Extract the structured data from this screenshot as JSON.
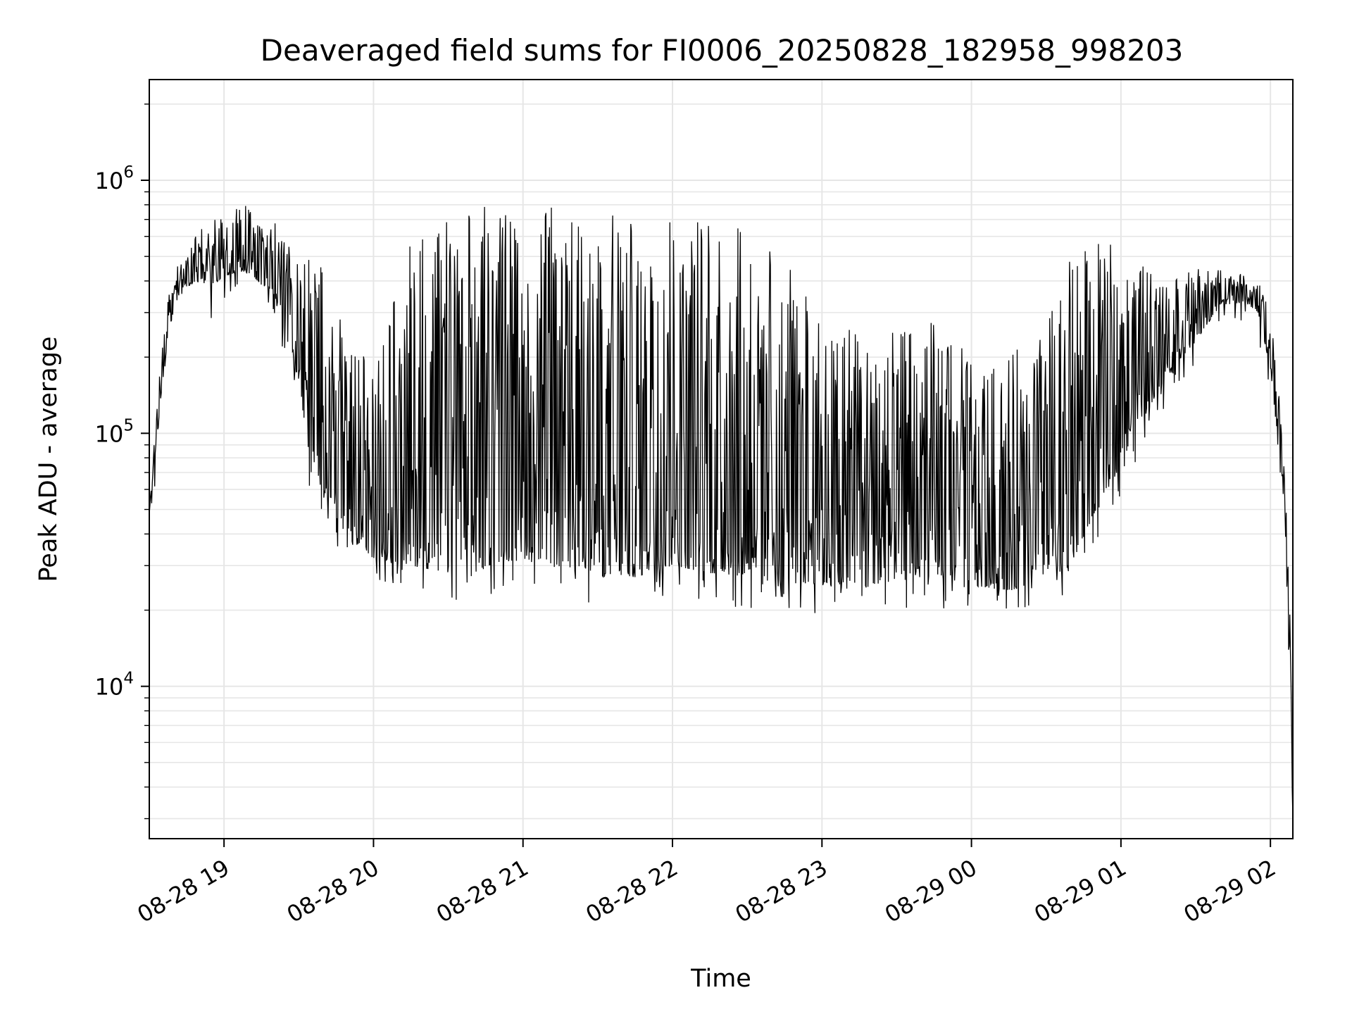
{
  "chart_data": {
    "type": "line",
    "title": "Deaveraged field sums for FI0006_20250828_182958_998203",
    "xlabel": "Time",
    "ylabel": "Peak ADU - average",
    "yscale": "log",
    "ylim": [
      2500,
      2500000
    ],
    "xlim": [
      "08-28 18:30",
      "08-29 02:09"
    ],
    "grid": true,
    "x_ticks": [
      {
        "label": "08-28 19",
        "time": "08-28 19:00"
      },
      {
        "label": "08-28 20",
        "time": "08-28 20:00"
      },
      {
        "label": "08-28 21",
        "time": "08-28 21:00"
      },
      {
        "label": "08-28 22",
        "time": "08-28 22:00"
      },
      {
        "label": "08-28 23",
        "time": "08-28 23:00"
      },
      {
        "label": "08-29 00",
        "time": "08-29 00:00"
      },
      {
        "label": "08-29 01",
        "time": "08-29 01:00"
      },
      {
        "label": "08-29 02",
        "time": "08-29 02:00"
      }
    ],
    "y_ticks": [
      {
        "base": "10",
        "exp": "4",
        "value": 10000
      },
      {
        "base": "10",
        "exp": "5",
        "value": 100000
      },
      {
        "base": "10",
        "exp": "6",
        "value": 1000000
      }
    ],
    "series": [
      {
        "color": "#000000",
        "note_envelope": "approximate baseline / upper envelope of a dense noisy trace",
        "x": [
          "08-28 18:30",
          "08-28 18:35",
          "08-28 18:40",
          "08-28 18:45",
          "08-28 18:50",
          "08-28 18:55",
          "08-28 19:00",
          "08-28 19:10",
          "08-28 19:20",
          "08-28 19:30",
          "08-28 19:35",
          "08-28 19:40",
          "08-28 19:45",
          "08-28 19:50",
          "08-28 20:00",
          "08-28 20:15",
          "08-28 20:30",
          "08-28 20:40",
          "08-28 20:45",
          "08-28 21:00",
          "08-28 21:15",
          "08-28 21:30",
          "08-28 21:45",
          "08-28 22:00",
          "08-28 22:15",
          "08-28 22:30",
          "08-28 22:45",
          "08-28 23:00",
          "08-28 23:15",
          "08-28 23:30",
          "08-28 23:45",
          "08-29 00:00",
          "08-29 00:15",
          "08-29 00:30",
          "08-29 00:40",
          "08-29 00:50",
          "08-29 01:00",
          "08-29 01:10",
          "08-29 01:20",
          "08-29 01:30",
          "08-29 01:40",
          "08-29 01:50",
          "08-29 01:55",
          "08-29 02:00",
          "08-29 02:05",
          "08-29 02:08",
          "08-29 02:09"
        ],
        "low": [
          48000,
          150000,
          320000,
          380000,
          400000,
          380000,
          420000,
          430000,
          350000,
          160000,
          70000,
          60000,
          45000,
          38000,
          32000,
          30000,
          28000,
          25000,
          30000,
          32000,
          30000,
          28000,
          27000,
          30000,
          28000,
          27000,
          26000,
          25000,
          24000,
          27000,
          27000,
          25000,
          24000,
          24000,
          30000,
          50000,
          75000,
          120000,
          180000,
          230000,
          320000,
          330000,
          300000,
          180000,
          60000,
          9000,
          3000
        ],
        "high": [
          48000,
          250000,
          450000,
          500000,
          650000,
          700000,
          750000,
          800000,
          700000,
          500000,
          500000,
          450000,
          300000,
          250000,
          200000,
          600000,
          700000,
          750000,
          800000,
          800000,
          780000,
          760000,
          760000,
          740000,
          720000,
          650000,
          500000,
          300000,
          250000,
          250000,
          280000,
          200000,
          200000,
          300000,
          500000,
          600000,
          600000,
          450000,
          400000,
          450000,
          450000,
          420000,
          400000,
          300000,
          100000,
          20000,
          6000
        ]
      }
    ]
  }
}
